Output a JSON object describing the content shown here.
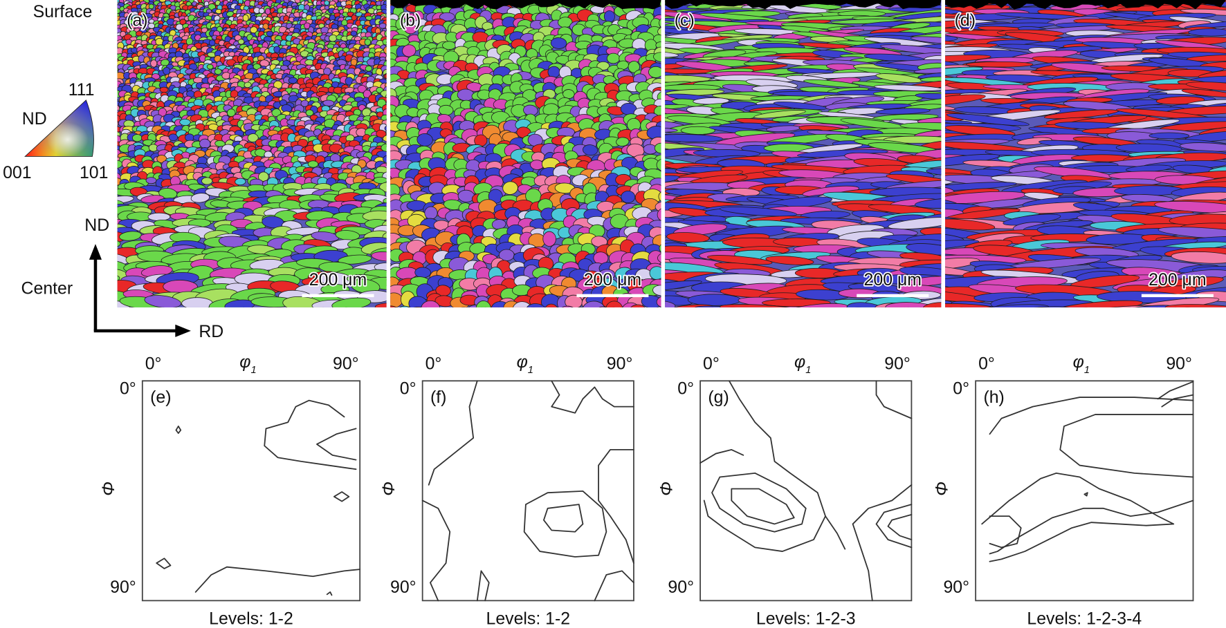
{
  "side_labels": {
    "surface": "Surface",
    "center": "Center"
  },
  "ipf_legend": {
    "top": "111",
    "nd": "ND",
    "left": "001",
    "right": "101"
  },
  "axes": {
    "nd": "ND",
    "rd": "RD"
  },
  "maps": [
    {
      "label": "(a)",
      "scale_bar": "200 μm"
    },
    {
      "label": "(b)",
      "scale_bar": "200 μm"
    },
    {
      "label": "(c)",
      "scale_bar": "200 μm"
    },
    {
      "label": "(d)",
      "scale_bar": "200 μm"
    }
  ],
  "odfs": [
    {
      "label": "(e)",
      "x_start": "0°",
      "x_name": {
        "symbol": "φ",
        "subscript": "1"
      },
      "x_end": "90°",
      "y_start": "0°",
      "y_name": "Φ",
      "y_end": "90°",
      "levels": "Levels: 1-2"
    },
    {
      "label": "(f)",
      "x_start": "0°",
      "x_name": {
        "symbol": "φ",
        "subscript": "1"
      },
      "x_end": "90°",
      "y_start": "0°",
      "y_name": "Φ",
      "y_end": "90°",
      "levels": "Levels: 1-2"
    },
    {
      "label": "(g)",
      "x_start": "0°",
      "x_name": {
        "symbol": "φ",
        "subscript": "1"
      },
      "x_end": "90°",
      "y_start": "0°",
      "y_name": "Φ",
      "y_end": "90°",
      "levels": "Levels: 1-2-3"
    },
    {
      "label": "(h)",
      "x_start": "0°",
      "x_name": {
        "symbol": "φ",
        "subscript": "1"
      },
      "x_end": "90°",
      "y_start": "0°",
      "y_name": "Φ",
      "y_end": "90°",
      "levels": "Levels: 1-2-3-4"
    }
  ]
}
